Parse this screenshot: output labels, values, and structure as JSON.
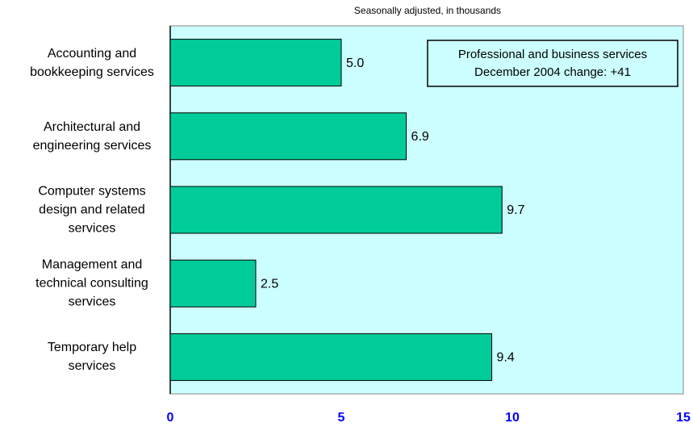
{
  "chart_data": {
    "type": "bar",
    "orientation": "horizontal",
    "subtitle": "Seasonally adjusted, in thousands",
    "annotation": [
      "Professional and business services",
      "December 2004 change: +41"
    ],
    "categories": [
      "Accounting and bookkeeping services",
      "Architectural and engineering services",
      "Computer systems design and related services",
      "Management and technical consulting services",
      "Temporary help services"
    ],
    "values": [
      5.0,
      6.9,
      9.7,
      2.5,
      9.4
    ],
    "value_labels": [
      "5.0",
      "6.9",
      "9.7",
      "2.5",
      "9.4"
    ],
    "color": "#00cc99",
    "background": "#ccffff",
    "xlim": [
      0,
      15
    ],
    "xticks": [
      0,
      5,
      10,
      15
    ]
  }
}
